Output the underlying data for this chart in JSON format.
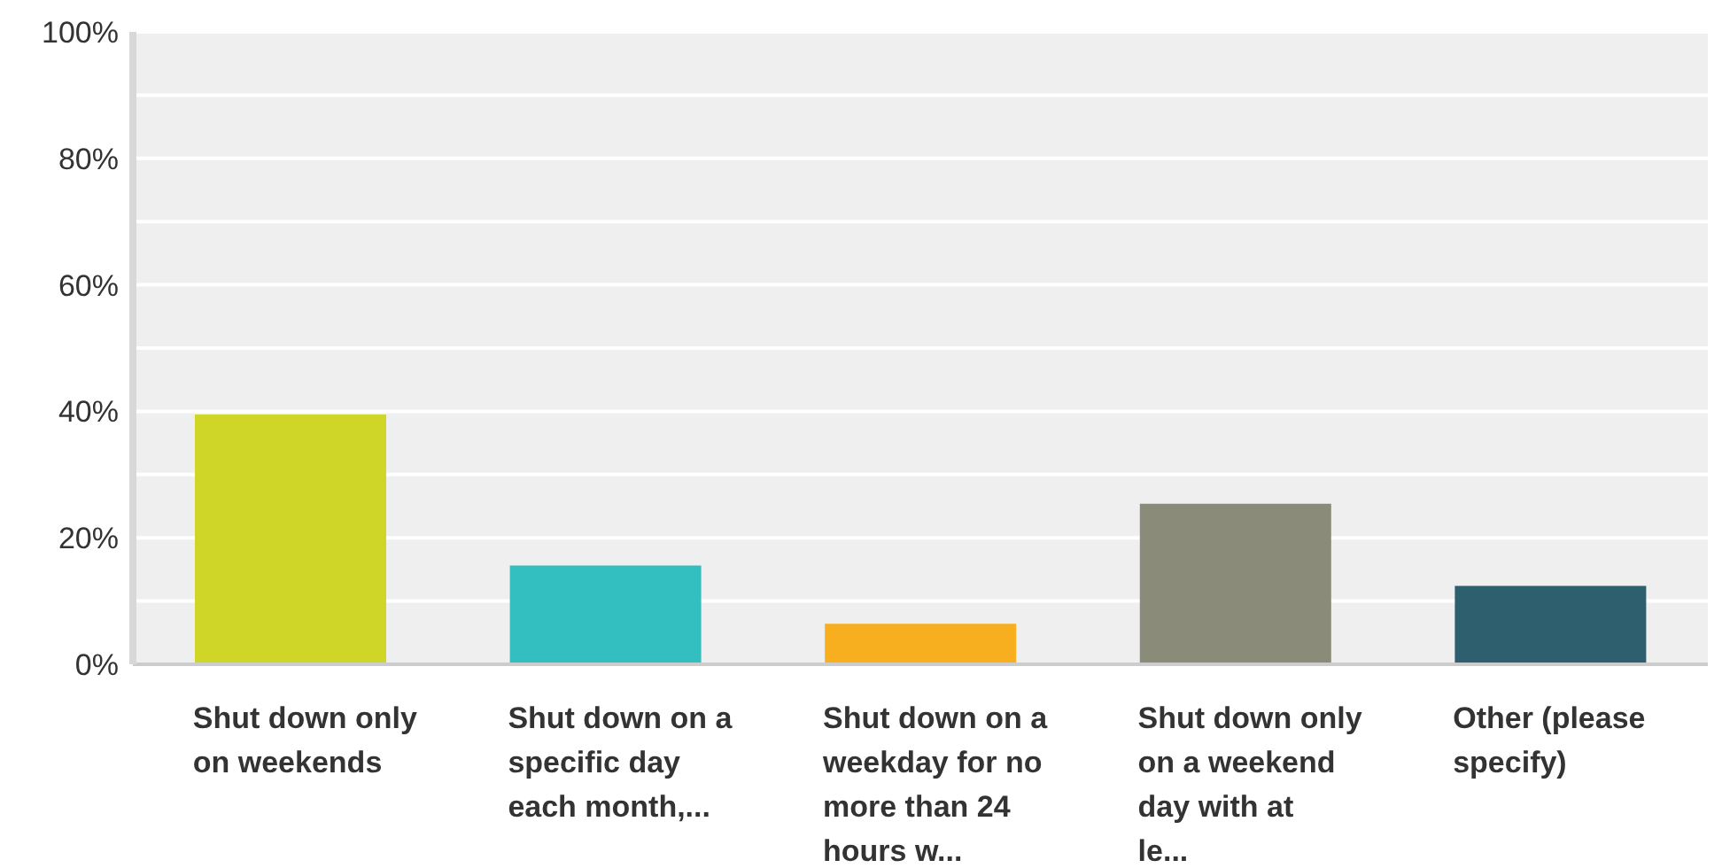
{
  "chart_data": {
    "type": "bar",
    "categories": [
      "Shut down only on weekends",
      "Shut down on a specific day each month,...",
      "Shut down on a weekday for no more than 24 hours w...",
      "Shut down only on a weekend day with at le...",
      "Other (please specify)"
    ],
    "values": [
      39.5,
      15.6,
      6.4,
      25.4,
      12.4
    ],
    "colors": [
      "#cfd628",
      "#33bec0",
      "#f7ae1f",
      "#8a8b79",
      "#2d5f6e"
    ],
    "ylim": [
      0,
      100
    ],
    "yticks": [
      {
        "value": 0,
        "label": "0%"
      },
      {
        "value": 10,
        "label": null
      },
      {
        "value": 20,
        "label": "20%"
      },
      {
        "value": 30,
        "label": null
      },
      {
        "value": 40,
        "label": "40%"
      },
      {
        "value": 50,
        "label": null
      },
      {
        "value": 60,
        "label": "60%"
      },
      {
        "value": 70,
        "label": null
      },
      {
        "value": 80,
        "label": "80%"
      },
      {
        "value": 90,
        "label": null
      },
      {
        "value": 100,
        "label": "100%"
      }
    ],
    "grid": "y"
  }
}
